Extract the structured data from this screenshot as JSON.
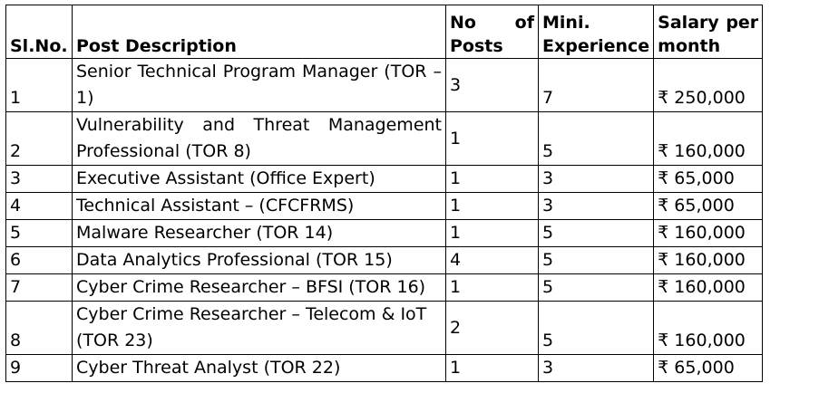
{
  "headers": {
    "sl_no": "Sl.No.",
    "post_description": "Post Description",
    "no_of_posts_1": "No",
    "no_of_posts_2": "of",
    "no_of_posts_3": "Posts",
    "experience_1": "Mini.",
    "experience_2": "Experience",
    "salary_1": "Salary",
    "salary_2": "per",
    "salary_3": "month"
  },
  "rows": [
    {
      "sl": "1",
      "desc": "Senior Technical Program Manager (TOR – 1)",
      "posts": "3",
      "exp": "7",
      "salary": "₹ 250,000"
    },
    {
      "sl": "2",
      "desc": "Vulnerability and Threat Management Professional (TOR 8)",
      "posts": "1",
      "exp": "5",
      "salary": "₹ 160,000"
    },
    {
      "sl": "3",
      "desc": "Executive Assistant (Office Expert)",
      "posts": "1",
      "exp": "3",
      "salary": "₹ 65,000"
    },
    {
      "sl": "4",
      "desc": "Technical Assistant – (CFCFRMS)",
      "posts": "1",
      "exp": "3",
      "salary": "₹ 65,000"
    },
    {
      "sl": "5",
      "desc": "Malware Researcher (TOR 14)",
      "posts": "1",
      "exp": "5",
      "salary": "₹ 160,000"
    },
    {
      "sl": "6",
      "desc": "Data Analytics Professional (TOR 15)",
      "posts": "4",
      "exp": "5",
      "salary": "₹ 160,000"
    },
    {
      "sl": "7",
      "desc": "Cyber Crime Researcher – BFSI (TOR 16)",
      "posts": "1",
      "exp": "5",
      "salary": "₹ 160,000"
    },
    {
      "sl": "8",
      "desc": "Cyber Crime Researcher – Telecom & IoT (TOR 23)",
      "posts": "2",
      "exp": "5",
      "salary": "₹ 160,000"
    },
    {
      "sl": "9",
      "desc": "Cyber Threat Analyst (TOR 22)",
      "posts": "1",
      "exp": "3",
      "salary": "₹ 65,000"
    }
  ]
}
